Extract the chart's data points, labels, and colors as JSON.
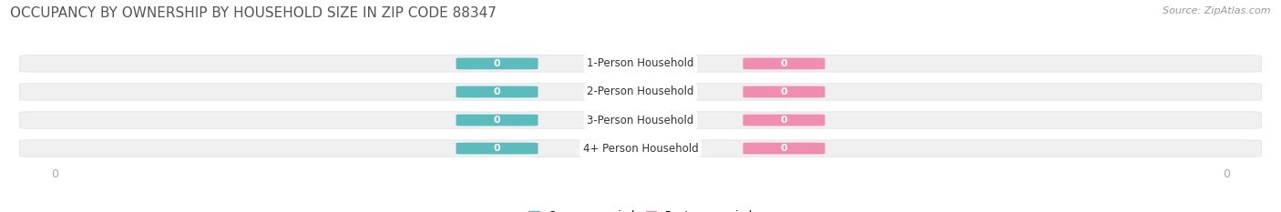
{
  "title": "OCCUPANCY BY OWNERSHIP BY HOUSEHOLD SIZE IN ZIP CODE 88347",
  "source": "Source: ZipAtlas.com",
  "categories": [
    "1-Person Household",
    "2-Person Household",
    "3-Person Household",
    "4+ Person Household"
  ],
  "owner_values": [
    0,
    0,
    0,
    0
  ],
  "renter_values": [
    0,
    0,
    0,
    0
  ],
  "owner_color": "#5bbcbe",
  "renter_color": "#f08db0",
  "bar_bg_color": "#f0f0f0",
  "bar_edge_color": "#dddddd",
  "label_text_color": "#ffffff",
  "axis_label_color": "#aaaaaa",
  "title_color": "#555555",
  "title_fontsize": 11,
  "source_fontsize": 8,
  "figsize": [
    14.06,
    2.33
  ],
  "dpi": 100,
  "background_color": "#ffffff"
}
